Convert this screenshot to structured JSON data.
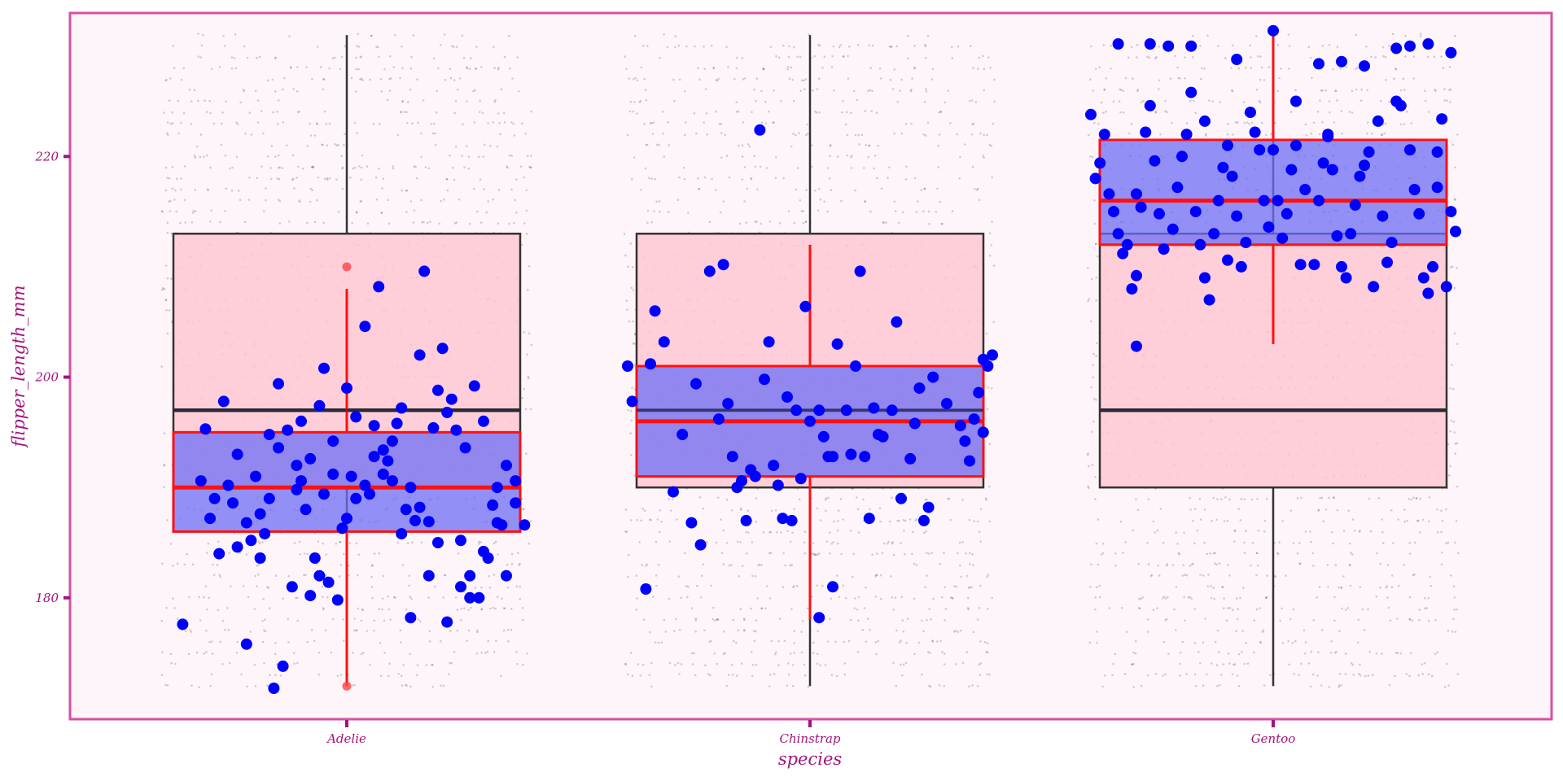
{
  "chart_data": {
    "type": "boxplot",
    "xlabel": "species",
    "ylabel": "flipper_length_mm",
    "categories": [
      "Adelie",
      "Chinstrap",
      "Gentoo"
    ],
    "ylim": [
      169,
      233
    ],
    "yticks": [
      180,
      200,
      220
    ],
    "grid": false,
    "legend": "none",
    "colors": {
      "panel_bg": "#fdf5fa",
      "panel_border": "#d94fa0",
      "axis_text": "#a0157a",
      "overall_box_fill": "#ffc8d2",
      "overall_box_stroke": "#333333",
      "species_box_fill": "#6e6ef5",
      "species_box_stroke": "#ff1010",
      "point": "#0000ff",
      "outlier": "#ff4444",
      "background_dots": "#333333"
    },
    "overall_box": {
      "min": 172,
      "q1": 190,
      "median": 197,
      "q3": 213,
      "max": 231
    },
    "species_boxes": [
      {
        "species": "Adelie",
        "min": 172,
        "q1": 186,
        "median": 190,
        "q3": 195,
        "max": 208,
        "outliers": [
          210,
          172
        ]
      },
      {
        "species": "Chinstrap",
        "min": 178,
        "q1": 191,
        "median": 196,
        "q3": 201,
        "max": 212,
        "outliers": []
      },
      {
        "species": "Gentoo",
        "min": 203,
        "q1": 212,
        "median": 216,
        "q3": 221.5,
        "max": 231,
        "outliers": []
      }
    ],
    "points": {
      "Adelie": [
        {
          "j": -0.31,
          "y": 195.3
        },
        {
          "j": -0.29,
          "y": 189.0
        },
        {
          "j": -0.32,
          "y": 190.6
        },
        {
          "j": -0.27,
          "y": 197.8
        },
        {
          "j": -0.24,
          "y": 193.0
        },
        {
          "j": -0.28,
          "y": 184.0
        },
        {
          "j": -0.21,
          "y": 185.2
        },
        {
          "j": -0.36,
          "y": 177.6
        },
        {
          "j": -0.26,
          "y": 190.2
        },
        {
          "j": -0.22,
          "y": 186.8
        },
        {
          "j": -0.19,
          "y": 187.6
        },
        {
          "j": -0.17,
          "y": 194.8
        },
        {
          "j": -0.15,
          "y": 199.4
        },
        {
          "j": -0.13,
          "y": 195.2
        },
        {
          "j": -0.11,
          "y": 192.0
        },
        {
          "j": -0.09,
          "y": 188.0
        },
        {
          "j": -0.07,
          "y": 183.6
        },
        {
          "j": -0.05,
          "y": 200.8
        },
        {
          "j": -0.03,
          "y": 191.2
        },
        {
          "j": -0.01,
          "y": 186.3
        },
        {
          "j": 0.02,
          "y": 196.4
        },
        {
          "j": -0.18,
          "y": 185.8
        },
        {
          "j": -0.12,
          "y": 181.0
        },
        {
          "j": -0.08,
          "y": 180.2
        },
        {
          "j": -0.04,
          "y": 181.4
        },
        {
          "j": -0.22,
          "y": 175.8
        },
        {
          "j": -0.14,
          "y": 173.8
        },
        {
          "j": -0.06,
          "y": 182.0
        },
        {
          "j": 0.0,
          "y": 187.2
        },
        {
          "j": 0.05,
          "y": 189.4
        },
        {
          "j": 0.08,
          "y": 191.2
        },
        {
          "j": 0.1,
          "y": 194.2
        },
        {
          "j": 0.12,
          "y": 197.2
        },
        {
          "j": 0.14,
          "y": 190.0
        },
        {
          "j": 0.16,
          "y": 188.2
        },
        {
          "j": 0.18,
          "y": 186.9
        },
        {
          "j": 0.2,
          "y": 185.0
        },
        {
          "j": -0.02,
          "y": 179.8
        },
        {
          "j": -0.16,
          "y": 171.8
        },
        {
          "j": 0.04,
          "y": 204.6
        },
        {
          "j": -0.1,
          "y": 190.6
        },
        {
          "j": 0.06,
          "y": 192.8
        },
        {
          "j": 0.22,
          "y": 196.8
        },
        {
          "j": 0.24,
          "y": 195.2
        },
        {
          "j": 0.26,
          "y": 193.6
        },
        {
          "j": 0.28,
          "y": 199.2
        },
        {
          "j": 0.3,
          "y": 196.0
        },
        {
          "j": 0.32,
          "y": 188.4
        },
        {
          "j": 0.34,
          "y": 186.6
        },
        {
          "j": 0.3,
          "y": 184.2
        },
        {
          "j": 0.27,
          "y": 182.0
        },
        {
          "j": 0.25,
          "y": 181.0
        },
        {
          "j": 0.33,
          "y": 190.0
        },
        {
          "j": 0.35,
          "y": 192.0
        },
        {
          "j": 0.37,
          "y": 188.6
        },
        {
          "j": 0.2,
          "y": 198.8
        },
        {
          "j": 0.16,
          "y": 202.0
        },
        {
          "j": 0.18,
          "y": 182.0
        },
        {
          "j": 0.22,
          "y": 177.8
        },
        {
          "j": 0.14,
          "y": 178.2
        },
        {
          "j": 0.12,
          "y": 185.8
        },
        {
          "j": 0.1,
          "y": 190.6
        },
        {
          "j": 0.08,
          "y": 193.4
        },
        {
          "j": 0.06,
          "y": 195.6
        },
        {
          "j": 0.04,
          "y": 190.2
        },
        {
          "j": 0.02,
          "y": 189.0
        },
        {
          "j": 0.0,
          "y": 199.0
        },
        {
          "j": 0.07,
          "y": 208.2
        },
        {
          "j": 0.17,
          "y": 209.6
        },
        {
          "j": 0.11,
          "y": 195.8
        },
        {
          "j": 0.09,
          "y": 192.4
        },
        {
          "j": 0.13,
          "y": 188.0
        },
        {
          "j": 0.15,
          "y": 187.0
        },
        {
          "j": 0.19,
          "y": 195.4
        },
        {
          "j": 0.21,
          "y": 202.6
        },
        {
          "j": 0.23,
          "y": 198.0
        },
        {
          "j": 0.25,
          "y": 185.2
        },
        {
          "j": 0.27,
          "y": 180.0
        },
        {
          "j": 0.29,
          "y": 180.0
        },
        {
          "j": 0.31,
          "y": 183.6
        },
        {
          "j": 0.33,
          "y": 186.8
        },
        {
          "j": 0.35,
          "y": 182.0
        },
        {
          "j": 0.37,
          "y": 190.6
        },
        {
          "j": 0.39,
          "y": 186.6
        },
        {
          "j": -0.3,
          "y": 187.2
        },
        {
          "j": -0.25,
          "y": 188.6
        },
        {
          "j": -0.2,
          "y": 191.0
        },
        {
          "j": -0.15,
          "y": 193.6
        },
        {
          "j": -0.1,
          "y": 196.0
        },
        {
          "j": -0.05,
          "y": 189.4
        },
        {
          "j": -0.24,
          "y": 184.6
        },
        {
          "j": -0.19,
          "y": 183.6
        },
        {
          "j": -0.11,
          "y": 189.8
        },
        {
          "j": -0.08,
          "y": 192.6
        },
        {
          "j": -0.06,
          "y": 197.4
        },
        {
          "j": -0.03,
          "y": 194.2
        },
        {
          "j": 0.01,
          "y": 191.0
        },
        {
          "j": -0.17,
          "y": 189.0
        }
      ],
      "Chinstrap": [
        {
          "j": -0.4,
          "y": 201.0
        },
        {
          "j": -0.39,
          "y": 197.8
        },
        {
          "j": -0.35,
          "y": 201.2
        },
        {
          "j": -0.34,
          "y": 206.0
        },
        {
          "j": -0.32,
          "y": 203.2
        },
        {
          "j": -0.3,
          "y": 189.6
        },
        {
          "j": -0.28,
          "y": 194.8
        },
        {
          "j": -0.26,
          "y": 186.8
        },
        {
          "j": -0.25,
          "y": 199.4
        },
        {
          "j": -0.24,
          "y": 184.8
        },
        {
          "j": -0.22,
          "y": 209.6
        },
        {
          "j": -0.2,
          "y": 196.2
        },
        {
          "j": -0.18,
          "y": 197.6
        },
        {
          "j": -0.17,
          "y": 192.8
        },
        {
          "j": -0.15,
          "y": 190.6
        },
        {
          "j": -0.14,
          "y": 187.0
        },
        {
          "j": -0.13,
          "y": 191.6
        },
        {
          "j": -0.12,
          "y": 191.0
        },
        {
          "j": -0.1,
          "y": 199.8
        },
        {
          "j": -0.07,
          "y": 190.2
        },
        {
          "j": -0.05,
          "y": 198.2
        },
        {
          "j": -0.04,
          "y": 187.0
        },
        {
          "j": -0.03,
          "y": 197.0
        },
        {
          "j": -0.02,
          "y": 190.8
        },
        {
          "j": 0.0,
          "y": 196.0
        },
        {
          "j": 0.02,
          "y": 178.2
        },
        {
          "j": 0.03,
          "y": 194.6
        },
        {
          "j": 0.04,
          "y": 192.8
        },
        {
          "j": 0.05,
          "y": 192.8
        },
        {
          "j": 0.06,
          "y": 203.0
        },
        {
          "j": 0.08,
          "y": 197.0
        },
        {
          "j": 0.1,
          "y": 201.0
        },
        {
          "j": 0.11,
          "y": 209.6
        },
        {
          "j": 0.12,
          "y": 192.8
        },
        {
          "j": 0.13,
          "y": 187.2
        },
        {
          "j": 0.14,
          "y": 197.2
        },
        {
          "j": 0.15,
          "y": 194.8
        },
        {
          "j": 0.16,
          "y": 194.6
        },
        {
          "j": 0.19,
          "y": 205.0
        },
        {
          "j": 0.18,
          "y": 197.0
        },
        {
          "j": 0.2,
          "y": 189.0
        },
        {
          "j": 0.22,
          "y": 192.6
        },
        {
          "j": 0.23,
          "y": 195.8
        },
        {
          "j": 0.25,
          "y": 187.0
        },
        {
          "j": 0.26,
          "y": 188.2
        },
        {
          "j": 0.27,
          "y": 200.0
        },
        {
          "j": 0.3,
          "y": 197.6
        },
        {
          "j": 0.33,
          "y": 195.6
        },
        {
          "j": 0.34,
          "y": 194.2
        },
        {
          "j": 0.36,
          "y": 196.2
        },
        {
          "j": 0.38,
          "y": 201.6
        },
        {
          "j": 0.39,
          "y": 201.0
        },
        {
          "j": 0.4,
          "y": 202.0
        },
        {
          "j": 0.38,
          "y": 195.0
        },
        {
          "j": 0.35,
          "y": 192.4
        },
        {
          "j": -0.36,
          "y": 180.8
        },
        {
          "j": -0.08,
          "y": 192.0
        },
        {
          "j": -0.01,
          "y": 206.4
        },
        {
          "j": 0.05,
          "y": 181.0
        },
        {
          "j": -0.09,
          "y": 203.2
        },
        {
          "j": -0.11,
          "y": 222.4
        },
        {
          "j": -0.19,
          "y": 210.2
        },
        {
          "j": 0.24,
          "y": 199.0
        },
        {
          "j": -0.06,
          "y": 187.2
        },
        {
          "j": 0.09,
          "y": 193.0
        },
        {
          "j": 0.02,
          "y": 197.0
        },
        {
          "j": -0.16,
          "y": 190.0
        },
        {
          "j": 0.37,
          "y": 198.6
        }
      ],
      "Gentoo": [
        {
          "j": -0.4,
          "y": 223.8
        },
        {
          "j": -0.38,
          "y": 219.4
        },
        {
          "j": -0.39,
          "y": 218.0
        },
        {
          "j": -0.36,
          "y": 216.6
        },
        {
          "j": -0.35,
          "y": 215.0
        },
        {
          "j": -0.34,
          "y": 213.0
        },
        {
          "j": -0.33,
          "y": 211.2
        },
        {
          "j": -0.32,
          "y": 212.0
        },
        {
          "j": -0.31,
          "y": 208.0
        },
        {
          "j": -0.3,
          "y": 209.2
        },
        {
          "j": -0.3,
          "y": 202.8
        },
        {
          "j": -0.29,
          "y": 215.4
        },
        {
          "j": -0.28,
          "y": 222.2
        },
        {
          "j": -0.27,
          "y": 224.6
        },
        {
          "j": -0.26,
          "y": 219.6
        },
        {
          "j": -0.25,
          "y": 214.8
        },
        {
          "j": -0.24,
          "y": 211.6
        },
        {
          "j": -0.22,
          "y": 213.4
        },
        {
          "j": -0.21,
          "y": 217.2
        },
        {
          "j": -0.2,
          "y": 220.0
        },
        {
          "j": -0.19,
          "y": 222.0
        },
        {
          "j": -0.18,
          "y": 225.8
        },
        {
          "j": -0.17,
          "y": 215.0
        },
        {
          "j": -0.16,
          "y": 212.0
        },
        {
          "j": -0.15,
          "y": 209.0
        },
        {
          "j": -0.14,
          "y": 207.0
        },
        {
          "j": -0.13,
          "y": 213.0
        },
        {
          "j": -0.12,
          "y": 216.0
        },
        {
          "j": -0.11,
          "y": 219.0
        },
        {
          "j": -0.1,
          "y": 221.0
        },
        {
          "j": -0.09,
          "y": 218.2
        },
        {
          "j": -0.08,
          "y": 214.6
        },
        {
          "j": -0.07,
          "y": 210.0
        },
        {
          "j": -0.06,
          "y": 212.2
        },
        {
          "j": -0.05,
          "y": 224.0
        },
        {
          "j": -0.04,
          "y": 222.2
        },
        {
          "j": -0.03,
          "y": 220.6
        },
        {
          "j": -0.02,
          "y": 216.0
        },
        {
          "j": -0.01,
          "y": 213.6
        },
        {
          "j": 0.0,
          "y": 220.6
        },
        {
          "j": 0.01,
          "y": 216.0
        },
        {
          "j": 0.02,
          "y": 212.6
        },
        {
          "j": 0.03,
          "y": 214.8
        },
        {
          "j": 0.04,
          "y": 218.8
        },
        {
          "j": 0.05,
          "y": 221.0
        },
        {
          "j": 0.06,
          "y": 210.2
        },
        {
          "j": 0.07,
          "y": 217.0
        },
        {
          "j": 0.09,
          "y": 210.2
        },
        {
          "j": 0.1,
          "y": 216.0
        },
        {
          "j": 0.11,
          "y": 219.4
        },
        {
          "j": 0.12,
          "y": 221.8
        },
        {
          "j": 0.13,
          "y": 218.8
        },
        {
          "j": 0.14,
          "y": 212.8
        },
        {
          "j": 0.15,
          "y": 210.0
        },
        {
          "j": 0.16,
          "y": 209.0
        },
        {
          "j": 0.17,
          "y": 213.0
        },
        {
          "j": 0.18,
          "y": 215.6
        },
        {
          "j": 0.19,
          "y": 218.2
        },
        {
          "j": 0.2,
          "y": 219.2
        },
        {
          "j": 0.21,
          "y": 220.4
        },
        {
          "j": 0.22,
          "y": 208.2
        },
        {
          "j": 0.23,
          "y": 223.2
        },
        {
          "j": 0.25,
          "y": 210.4
        },
        {
          "j": 0.26,
          "y": 212.2
        },
        {
          "j": 0.27,
          "y": 225.0
        },
        {
          "j": 0.28,
          "y": 224.6
        },
        {
          "j": 0.3,
          "y": 220.6
        },
        {
          "j": 0.31,
          "y": 217.0
        },
        {
          "j": 0.32,
          "y": 214.8
        },
        {
          "j": 0.33,
          "y": 209.0
        },
        {
          "j": 0.34,
          "y": 207.6
        },
        {
          "j": 0.35,
          "y": 210.0
        },
        {
          "j": 0.36,
          "y": 217.2
        },
        {
          "j": 0.37,
          "y": 223.4
        },
        {
          "j": 0.38,
          "y": 208.2
        },
        {
          "j": 0.39,
          "y": 215.0
        },
        {
          "j": 0.4,
          "y": 213.2
        },
        {
          "j": -0.37,
          "y": 222.0
        },
        {
          "j": -0.23,
          "y": 230.0
        },
        {
          "j": -0.27,
          "y": 230.2
        },
        {
          "j": -0.18,
          "y": 230.0
        },
        {
          "j": -0.08,
          "y": 228.8
        },
        {
          "j": 0.0,
          "y": 231.4
        },
        {
          "j": 0.15,
          "y": 228.6
        },
        {
          "j": 0.2,
          "y": 228.2
        },
        {
          "j": 0.27,
          "y": 229.8
        },
        {
          "j": 0.34,
          "y": 230.2
        },
        {
          "j": 0.39,
          "y": 229.4
        },
        {
          "j": -0.34,
          "y": 230.2
        },
        {
          "j": 0.1,
          "y": 228.4
        },
        {
          "j": 0.3,
          "y": 230.0
        },
        {
          "j": -0.1,
          "y": 210.6
        },
        {
          "j": 0.24,
          "y": 214.6
        },
        {
          "j": 0.12,
          "y": 222.0
        },
        {
          "j": -0.15,
          "y": 223.2
        },
        {
          "j": 0.05,
          "y": 225.0
        },
        {
          "j": 0.36,
          "y": 220.4
        },
        {
          "j": -0.3,
          "y": 216.6
        }
      ]
    }
  }
}
